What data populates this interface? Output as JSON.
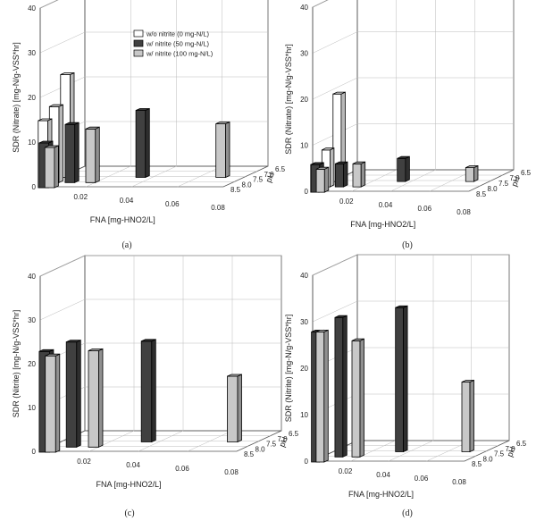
{
  "figure": {
    "panel_labels": [
      "(a)",
      "(b)",
      "(c)",
      "(d)"
    ],
    "legend": [
      {
        "label": "w/o nitrite (0 mg-N/L)",
        "color": "#ffffff"
      },
      {
        "label": "w/ nitrite (50 mg-N/L)",
        "color": "#404040"
      },
      {
        "label": "w/ nitrite (100 mg-N/L)",
        "color": "#c8c8c8"
      }
    ]
  },
  "chart_data": [
    {
      "type": "bar",
      "panel": "(a)",
      "ylabel": "SDR (Nitrate) [mg-N/g-VSS*hr]",
      "xlabel": "FNA [mg-HNO2/L]",
      "zlabel": "pH",
      "ylim": [
        0,
        40
      ],
      "yticks": [
        "0",
        "10",
        "20",
        "30",
        "40"
      ],
      "xticks": [
        "0.02",
        "0.04",
        "0.06",
        "0.08"
      ],
      "zticks": [
        "6.5",
        "7.0",
        "7.5",
        "8.0",
        "8.5"
      ],
      "series": [
        {
          "name": "w/o nitrite (0 mg-N/L)",
          "points": [
            {
              "fna": 0.001,
              "ph": 8.5,
              "y": 15
            },
            {
              "fna": 0.001,
              "ph": 8.0,
              "y": 17
            },
            {
              "fna": 0.001,
              "ph": 7.5,
              "y": 23
            }
          ]
        },
        {
          "name": "w/ nitrite (50 mg-N/L)",
          "points": [
            {
              "fna": 0.0025,
              "ph": 8.5,
              "y": 10
            },
            {
              "fna": 0.009,
              "ph": 8.0,
              "y": 13
            },
            {
              "fna": 0.035,
              "ph": 7.5,
              "y": 15
            }
          ]
        },
        {
          "name": "w/ nitrite (100 mg-N/L)",
          "points": [
            {
              "fna": 0.005,
              "ph": 8.5,
              "y": 9
            },
            {
              "fna": 0.018,
              "ph": 8.0,
              "y": 12
            },
            {
              "fna": 0.07,
              "ph": 7.5,
              "y": 12
            }
          ]
        }
      ]
    },
    {
      "type": "bar",
      "panel": "(b)",
      "ylabel": "SDR (Nitrate) [mg-N/g-VSS*hr]",
      "xlabel": "FNA [mg-HNO2/L]",
      "zlabel": "pH",
      "ylim": [
        0,
        40
      ],
      "yticks": [
        "0",
        "10",
        "20",
        "30",
        "40"
      ],
      "xticks": [
        "0.02",
        "0.04",
        "0.06",
        "0.08"
      ],
      "zticks": [
        "6.5",
        "7.0",
        "7.5",
        "8.0",
        "8.5"
      ],
      "series": [
        {
          "name": "w/o nitrite (0 mg-N/L)",
          "points": [
            {
              "fna": 0.001,
              "ph": 8.5,
              "y": 6
            },
            {
              "fna": 0.001,
              "ph": 8.0,
              "y": 8
            },
            {
              "fna": 0.001,
              "ph": 7.5,
              "y": 19
            }
          ]
        },
        {
          "name": "w/ nitrite (50 mg-N/L)",
          "points": [
            {
              "fna": 0.0025,
              "ph": 8.5,
              "y": 6
            },
            {
              "fna": 0.009,
              "ph": 8.0,
              "y": 5
            },
            {
              "fna": 0.035,
              "ph": 7.5,
              "y": 5
            }
          ]
        },
        {
          "name": "w/ nitrite (100 mg-N/L)",
          "points": [
            {
              "fna": 0.005,
              "ph": 8.5,
              "y": 5
            },
            {
              "fna": 0.018,
              "ph": 8.0,
              "y": 5
            },
            {
              "fna": 0.07,
              "ph": 7.5,
              "y": 3
            }
          ]
        }
      ]
    },
    {
      "type": "bar",
      "panel": "(c)",
      "ylabel": "SDR (Nitrite) [mg-N/g-VSS*hr]",
      "xlabel": "FNA [mg-HNO2/L]",
      "zlabel": "pH",
      "ylim": [
        0,
        40
      ],
      "yticks": [
        "0",
        "10",
        "20",
        "30",
        "40"
      ],
      "xticks": [
        "0.02",
        "0.04",
        "0.06",
        "0.08"
      ],
      "zticks": [
        "6.5",
        "7.0",
        "7.5",
        "8.0",
        "8.5"
      ],
      "series": [
        {
          "name": "w/ nitrite (50 mg-N/L)",
          "points": [
            {
              "fna": 0.0025,
              "ph": 8.5,
              "y": 23
            },
            {
              "fna": 0.009,
              "ph": 8.0,
              "y": 24
            },
            {
              "fna": 0.035,
              "ph": 7.5,
              "y": 23
            }
          ]
        },
        {
          "name": "w/ nitrite (100 mg-N/L)",
          "points": [
            {
              "fna": 0.005,
              "ph": 8.5,
              "y": 22
            },
            {
              "fna": 0.018,
              "ph": 8.0,
              "y": 22
            },
            {
              "fna": 0.07,
              "ph": 7.5,
              "y": 15
            }
          ]
        }
      ]
    },
    {
      "type": "bar",
      "panel": "(d)",
      "ylabel": "SDR (Nitrite) [mg-N/g-VSS*hr]",
      "xlabel": "FNA [mg-HNO2/L]",
      "zlabel": "pH",
      "ylim": [
        0,
        40
      ],
      "yticks": [
        "0",
        "10",
        "20",
        "30",
        "40"
      ],
      "xticks": [
        "0.02",
        "0.04",
        "0.06",
        "0.08"
      ],
      "zticks": [
        "6.5",
        "7.0",
        "7.5",
        "8.0",
        "8.5"
      ],
      "series": [
        {
          "name": "w/ nitrite (50 mg-N/L)",
          "points": [
            {
              "fna": 0.0025,
              "ph": 8.5,
              "y": 28
            },
            {
              "fna": 0.009,
              "ph": 8.0,
              "y": 30
            },
            {
              "fna": 0.035,
              "ph": 7.5,
              "y": 31
            }
          ]
        },
        {
          "name": "w/ nitrite (100 mg-N/L)",
          "points": [
            {
              "fna": 0.005,
              "ph": 8.5,
              "y": 28
            },
            {
              "fna": 0.018,
              "ph": 8.0,
              "y": 25
            },
            {
              "fna": 0.07,
              "ph": 7.5,
              "y": 15
            }
          ]
        }
      ]
    }
  ]
}
